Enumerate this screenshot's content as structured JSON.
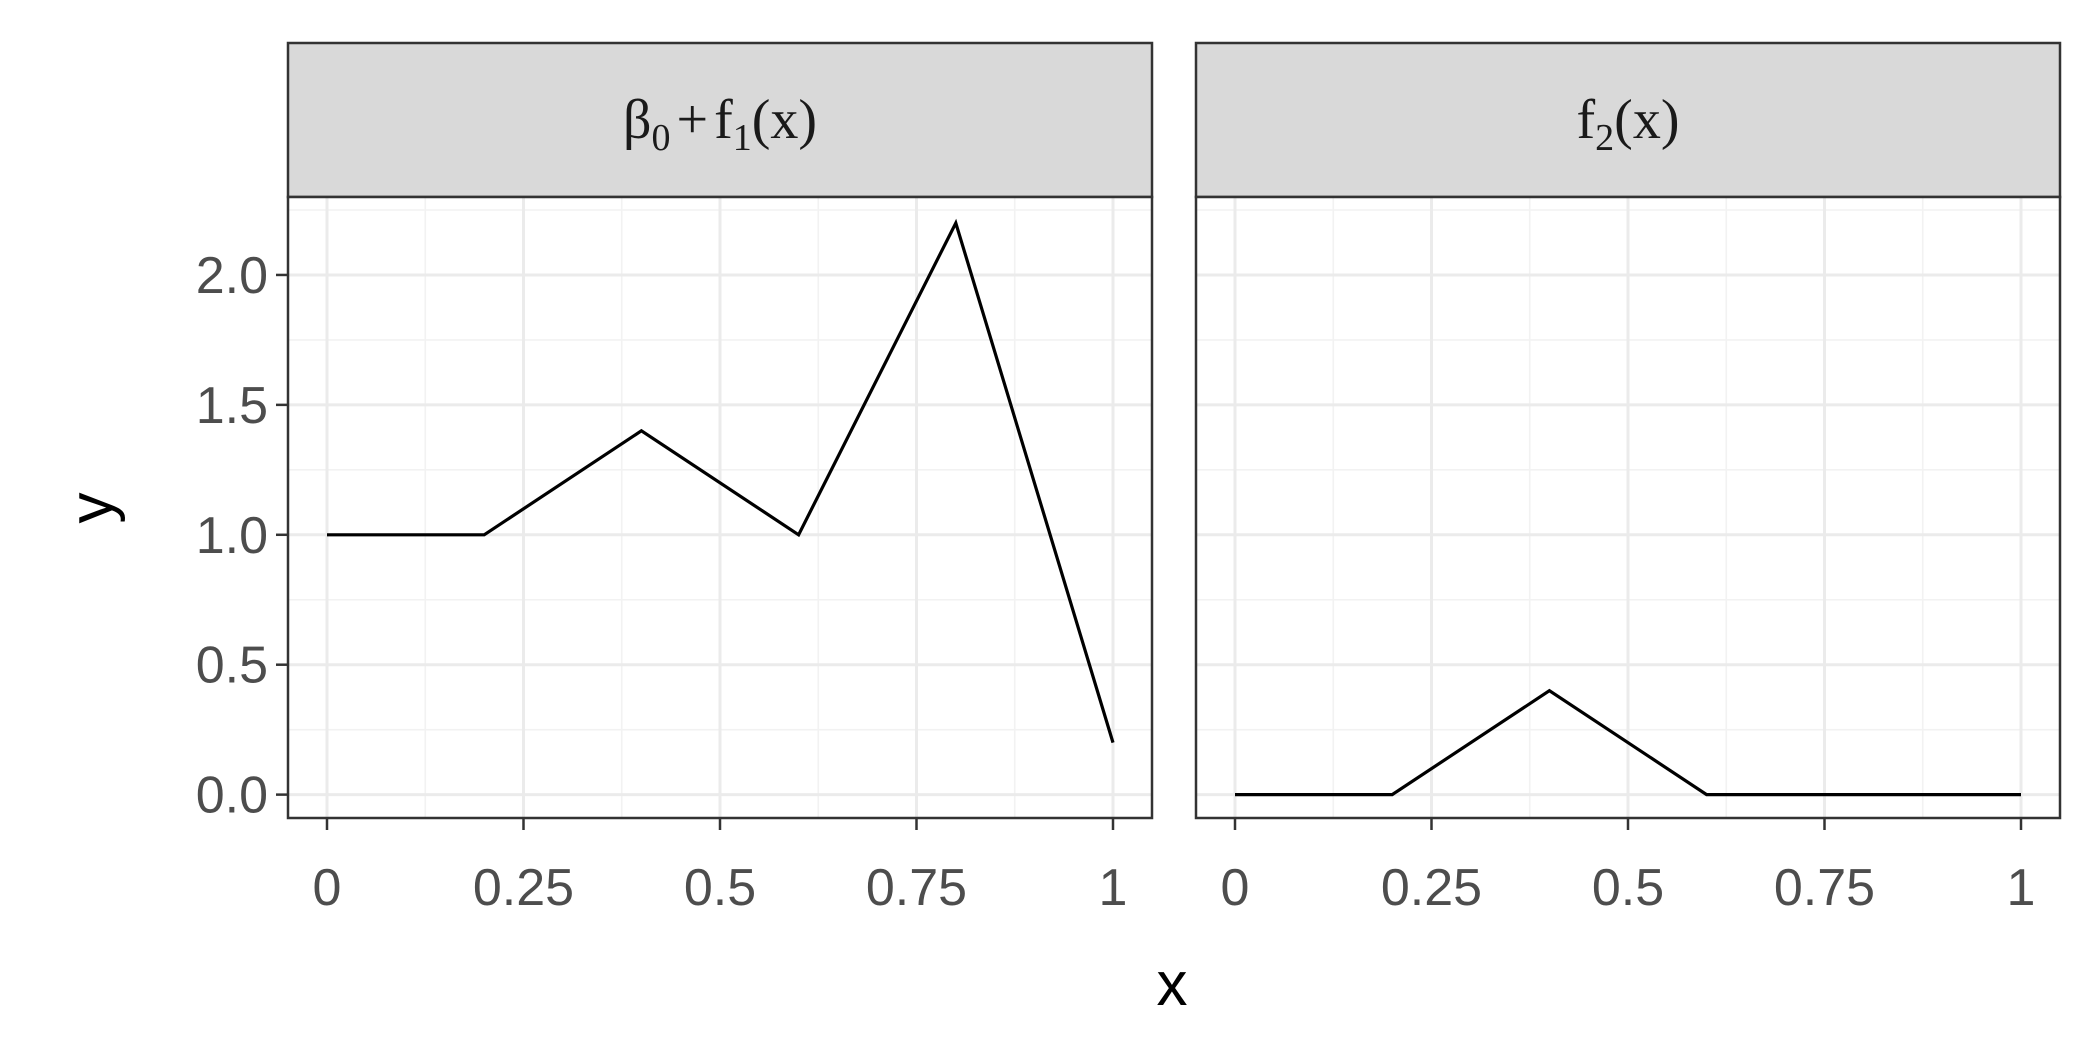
{
  "chart_data": {
    "type": "line",
    "xlabel": "x",
    "ylabel": "y",
    "xlim": [
      0,
      1
    ],
    "ylim": [
      -0.09,
      2.3
    ],
    "x_ticks": [
      0,
      0.25,
      0.5,
      0.75,
      1
    ],
    "x_tick_labels": [
      "0",
      "0.25",
      "0.5",
      "0.75",
      "1"
    ],
    "y_ticks": [
      0,
      0.5,
      1.0,
      1.5,
      2.0
    ],
    "y_tick_labels": [
      "0.0",
      "0.5",
      "1.0",
      "1.5",
      "2.0"
    ],
    "grid": true,
    "panels": [
      {
        "strip": {
          "base": "β",
          "sub1": "0",
          "plus": "+",
          "f": "f",
          "sub2": "1",
          "arg": "(x)"
        },
        "x": [
          0,
          0.2,
          0.4,
          0.6,
          0.8,
          1.0
        ],
        "y": [
          1.0,
          1.0,
          1.4,
          1.0,
          2.2,
          0.2
        ]
      },
      {
        "strip": {
          "f": "f",
          "sub": "2",
          "arg": "(x)"
        },
        "x": [
          0,
          0.2,
          0.4,
          0.6,
          0.8,
          1.0
        ],
        "y": [
          0.0,
          0.0,
          0.4,
          0.0,
          0.0,
          0.0
        ]
      }
    ]
  }
}
